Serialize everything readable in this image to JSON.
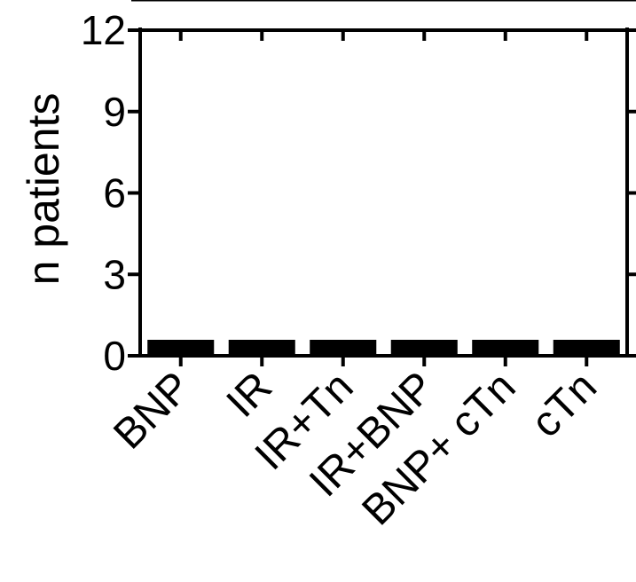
{
  "chart_data": {
    "type": "bar",
    "title": "",
    "xlabel": "",
    "ylabel": "n patients",
    "ylim": [
      0,
      12
    ],
    "yticks": [
      "0",
      "3",
      "6",
      "9",
      "12"
    ],
    "categories": [
      "BNP",
      "IR",
      "IR+Tn",
      "IR+BNP",
      "BNP+ cTn",
      "cTn"
    ],
    "values": [
      0.4,
      0.4,
      0.4,
      0.4,
      0.4,
      0.4
    ],
    "grid": false,
    "colors": {
      "bar": "#000000",
      "axis": "#000000"
    }
  }
}
